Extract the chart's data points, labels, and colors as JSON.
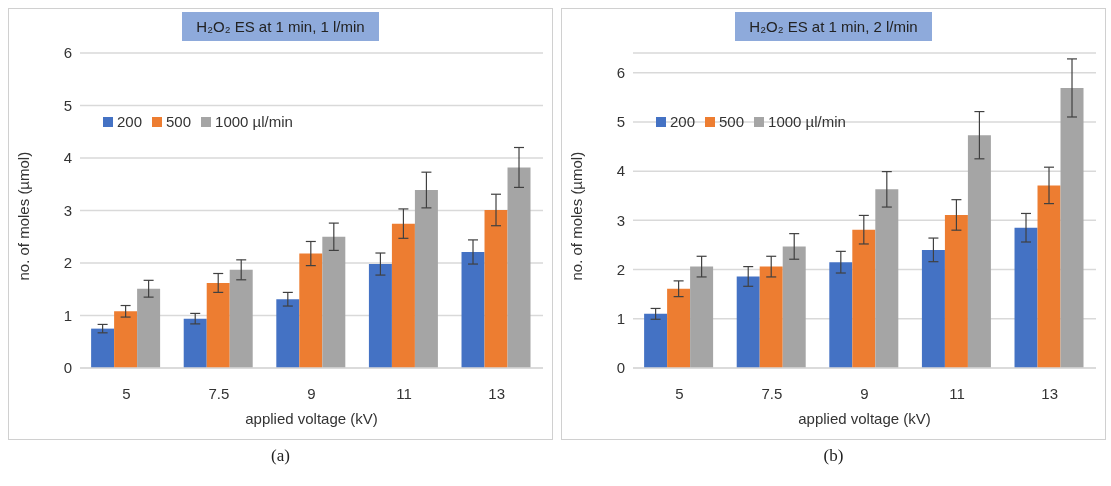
{
  "chart_data": [
    {
      "type": "bar",
      "title": "H₂O₂ ES at 1 min, 1 l/min",
      "xlabel": "applied voltage (kV)",
      "ylabel": "no. of moles (µmol)",
      "categories": [
        "5",
        "7.5",
        "9",
        "11",
        "13"
      ],
      "series": [
        {
          "name": "200",
          "color": "#4472c4",
          "values": [
            0.75,
            0.94,
            1.31,
            1.98,
            2.21
          ],
          "errors": [
            0.08,
            0.1,
            0.13,
            0.21,
            0.23
          ]
        },
        {
          "name": "500",
          "color": "#ed7d31",
          "values": [
            1.08,
            1.62,
            2.18,
            2.75,
            3.01
          ],
          "errors": [
            0.11,
            0.18,
            0.23,
            0.28,
            0.3
          ]
        },
        {
          "name": "1000 µl/min",
          "color": "#a5a5a5",
          "values": [
            1.51,
            1.87,
            2.5,
            3.39,
            3.82
          ],
          "errors": [
            0.16,
            0.19,
            0.26,
            0.34,
            0.38
          ]
        }
      ],
      "ylim": [
        0,
        6
      ],
      "yticks": [
        0,
        1,
        2,
        3,
        4,
        5,
        6
      ],
      "grid": "y",
      "legend": "top left",
      "annotations": [
        "(a)"
      ]
    },
    {
      "type": "bar",
      "title": "H₂O₂ ES at 1 min, 2 l/min",
      "xlabel": "applied voltage (kV)",
      "ylabel": "no. of moles (µmol)",
      "categories": [
        "5",
        "7.5",
        "9",
        "11",
        "13"
      ],
      "series": [
        {
          "name": "200",
          "color": "#4472c4",
          "values": [
            1.1,
            1.86,
            2.15,
            2.4,
            2.85
          ],
          "errors": [
            0.11,
            0.2,
            0.22,
            0.24,
            0.29
          ]
        },
        {
          "name": "500",
          "color": "#ed7d31",
          "values": [
            1.61,
            2.06,
            2.81,
            3.11,
            3.71
          ],
          "errors": [
            0.16,
            0.21,
            0.29,
            0.31,
            0.37
          ]
        },
        {
          "name": "1000 µl/min",
          "color": "#a5a5a5",
          "values": [
            2.06,
            2.47,
            3.63,
            4.73,
            5.69
          ],
          "errors": [
            0.21,
            0.26,
            0.36,
            0.48,
            0.59
          ]
        }
      ],
      "ylim": [
        0,
        6.4
      ],
      "yticks": [
        0,
        1,
        2,
        3,
        4,
        5,
        6
      ],
      "grid": "y",
      "legend": "top left",
      "annotations": [
        "(b)"
      ]
    }
  ]
}
